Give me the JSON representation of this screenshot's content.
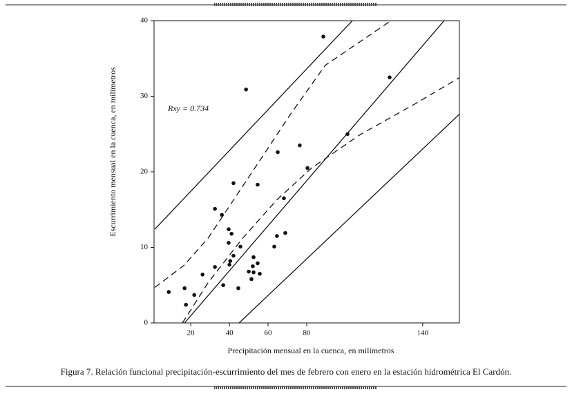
{
  "chart_data": {
    "type": "scatter",
    "caption": "Figura 7. Relación funcional precipitación-escurrimiento del mes de febrero con enero en la estación hidrométrica El Cardón.",
    "x_label": "Precipitación mensual en la cuenca, en milímetros",
    "y_label": "Escurrimiento mensual en la cuenca, en milímetros",
    "annotation": "Rxy = 0.734",
    "xlim": [
      1,
      159
    ],
    "ylim": [
      0,
      40
    ],
    "xticks": [
      20,
      40,
      60,
      80,
      140
    ],
    "yticks": [
      0,
      10,
      20,
      30,
      40
    ],
    "x": [
      8.6,
      16.8,
      17.5,
      21.8,
      26.1,
      32.5,
      32.5,
      36.1,
      36.8,
      39.6,
      39.6,
      40,
      40.4,
      41.1,
      42.1,
      42.1,
      44.6,
      45.7,
      48.6,
      50,
      51.4,
      52.1,
      52.5,
      52.5,
      54.6,
      54.6,
      55.7,
      63.2,
      64.6,
      65,
      68.2,
      68.9,
      76.4,
      80.4,
      88.6,
      101.1,
      122.9
    ],
    "series": [
      {
        "color": "#111111",
        "values": [
          4.1,
          4.6,
          2.4,
          3.7,
          6.4,
          7.4,
          15.1,
          14.3,
          5.0,
          12.4,
          10.6,
          7.7,
          8.2,
          11.8,
          8.9,
          18.5,
          4.6,
          10.1,
          30.9,
          6.8,
          5.8,
          7.5,
          8.7,
          6.7,
          18.3,
          7.9,
          6.5,
          10.1,
          11.5,
          22.6,
          16.5,
          11.9,
          23.5,
          20.5,
          37.9,
          25.0,
          32.5
        ]
      }
    ],
    "lines": [
      {
        "style": "solid",
        "x": [
          16.8,
          151.1
        ],
        "values": [
          0,
          40
        ]
      },
      {
        "style": "solid",
        "x": [
          1.4,
          103.6
        ],
        "values": [
          12.4,
          40
        ]
      },
      {
        "style": "solid",
        "x": [
          45,
          159.3
        ],
        "values": [
          0,
          27.7
        ]
      },
      {
        "style": "dashed",
        "x": [
          1.4,
          16.4,
          28.9,
          39.6,
          53.9,
          71.8,
          89.6,
          123.6
        ],
        "values": [
          4.7,
          7.6,
          11.2,
          15.3,
          20.8,
          27.7,
          34.1,
          40
        ]
      },
      {
        "style": "dashed",
        "x": [
          15.7,
          28.9,
          46.8,
          64.6,
          82.5,
          107.5,
          136.1,
          159.3
        ],
        "values": [
          0,
          5.3,
          11.2,
          16.3,
          20.5,
          24.9,
          29.0,
          32.5
        ]
      }
    ]
  }
}
